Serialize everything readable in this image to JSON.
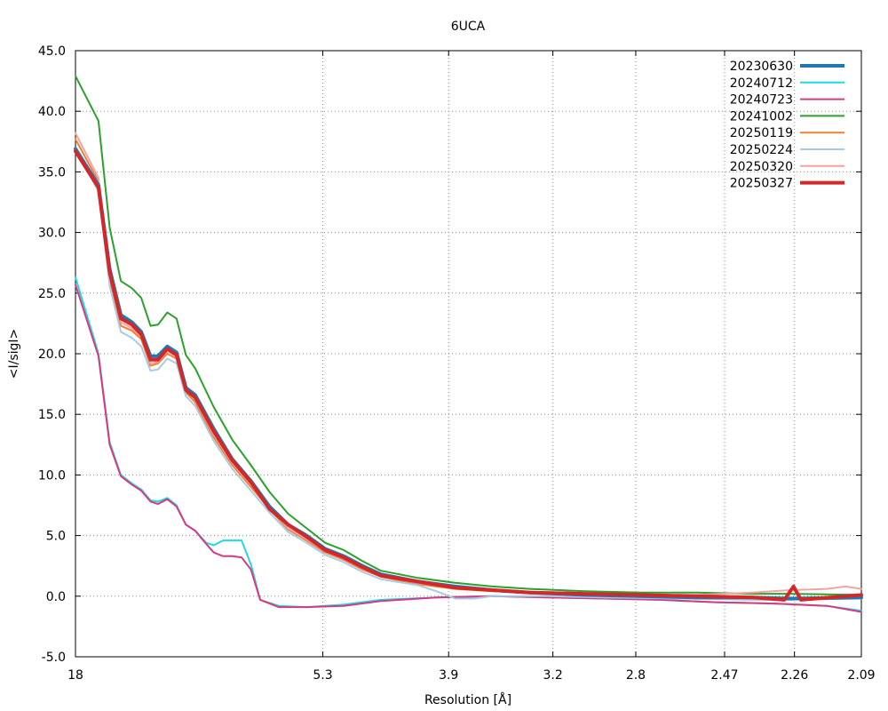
{
  "chart_data": {
    "type": "line",
    "title": "6UCA",
    "xlabel": "Resolution [Å]",
    "ylabel": "<I/sigI>",
    "x_tick_labels": [
      "18",
      "5.3",
      "3.9",
      "3.2",
      "2.8",
      "2.47",
      "2.26",
      "2.09"
    ],
    "x_tick_values": [
      0.0556,
      0.1887,
      0.2564,
      0.3125,
      0.3571,
      0.4049,
      0.4425,
      0.4785
    ],
    "x_range": [
      0.0556,
      0.4785
    ],
    "x_scale": "inverse resolution (1/Å), labels show resolution in Å",
    "y_ticks": [
      -5.0,
      0.0,
      5.0,
      10.0,
      15.0,
      20.0,
      25.0,
      30.0,
      35.0,
      40.0,
      45.0
    ],
    "ylim": [
      -5,
      45
    ],
    "grid": true,
    "legend_position": "top-right",
    "series": [
      {
        "name": "20230630",
        "color": "#1f77b4",
        "width": 4,
        "points": [
          [
            0.0556,
            36.9
          ],
          [
            0.068,
            33.9
          ],
          [
            0.074,
            27.0
          ],
          [
            0.08,
            23.2
          ],
          [
            0.086,
            22.6
          ],
          [
            0.091,
            21.8
          ],
          [
            0.096,
            19.8
          ],
          [
            0.1,
            19.8
          ],
          [
            0.105,
            20.6
          ],
          [
            0.11,
            20.1
          ],
          [
            0.115,
            17.2
          ],
          [
            0.12,
            16.6
          ],
          [
            0.13,
            13.8
          ],
          [
            0.14,
            11.3
          ],
          [
            0.15,
            9.5
          ],
          [
            0.16,
            7.4
          ],
          [
            0.17,
            5.9
          ],
          [
            0.18,
            5.0
          ],
          [
            0.19,
            3.9
          ],
          [
            0.2,
            3.3
          ],
          [
            0.21,
            2.5
          ],
          [
            0.22,
            1.8
          ],
          [
            0.24,
            1.2
          ],
          [
            0.26,
            0.8
          ],
          [
            0.28,
            0.5
          ],
          [
            0.3,
            0.3
          ],
          [
            0.33,
            0.1
          ],
          [
            0.36,
            0.0
          ],
          [
            0.39,
            -0.1
          ],
          [
            0.42,
            -0.1
          ],
          [
            0.44,
            -0.2
          ],
          [
            0.4785,
            -0.1
          ]
        ]
      },
      {
        "name": "20240712",
        "color": "#1ed9e6",
        "width": 2,
        "points": [
          [
            0.0556,
            26.3
          ],
          [
            0.068,
            20.0
          ],
          [
            0.074,
            12.7
          ],
          [
            0.08,
            10.0
          ],
          [
            0.086,
            9.3
          ],
          [
            0.091,
            8.8
          ],
          [
            0.096,
            7.9
          ],
          [
            0.1,
            7.8
          ],
          [
            0.105,
            8.1
          ],
          [
            0.11,
            7.5
          ],
          [
            0.115,
            5.9
          ],
          [
            0.12,
            5.4
          ],
          [
            0.126,
            4.4
          ],
          [
            0.13,
            4.2
          ],
          [
            0.135,
            4.6
          ],
          [
            0.14,
            4.6
          ],
          [
            0.145,
            4.6
          ],
          [
            0.15,
            2.6
          ],
          [
            0.155,
            -0.3
          ],
          [
            0.165,
            -0.8
          ],
          [
            0.18,
            -0.9
          ],
          [
            0.2,
            -0.7
          ],
          [
            0.22,
            -0.3
          ],
          [
            0.25,
            -0.1
          ],
          [
            0.28,
            0.0
          ],
          [
            0.31,
            -0.1
          ],
          [
            0.34,
            -0.2
          ],
          [
            0.37,
            -0.3
          ],
          [
            0.4,
            -0.5
          ],
          [
            0.43,
            -0.6
          ],
          [
            0.46,
            -0.8
          ],
          [
            0.4785,
            -1.2
          ]
        ]
      },
      {
        "name": "20240723",
        "color": "#d63a83",
        "width": 2,
        "points": [
          [
            0.0556,
            25.7
          ],
          [
            0.068,
            19.8
          ],
          [
            0.074,
            12.5
          ],
          [
            0.08,
            9.9
          ],
          [
            0.086,
            9.2
          ],
          [
            0.091,
            8.7
          ],
          [
            0.096,
            7.8
          ],
          [
            0.1,
            7.6
          ],
          [
            0.105,
            8.0
          ],
          [
            0.11,
            7.4
          ],
          [
            0.115,
            5.9
          ],
          [
            0.12,
            5.4
          ],
          [
            0.126,
            4.3
          ],
          [
            0.13,
            3.6
          ],
          [
            0.135,
            3.3
          ],
          [
            0.14,
            3.3
          ],
          [
            0.145,
            3.2
          ],
          [
            0.15,
            2.2
          ],
          [
            0.155,
            -0.3
          ],
          [
            0.165,
            -0.9
          ],
          [
            0.18,
            -0.9
          ],
          [
            0.2,
            -0.8
          ],
          [
            0.22,
            -0.4
          ],
          [
            0.25,
            -0.1
          ],
          [
            0.28,
            0.0
          ],
          [
            0.31,
            -0.1
          ],
          [
            0.34,
            -0.2
          ],
          [
            0.37,
            -0.3
          ],
          [
            0.4,
            -0.5
          ],
          [
            0.43,
            -0.6
          ],
          [
            0.46,
            -0.8
          ],
          [
            0.4785,
            -1.3
          ]
        ]
      },
      {
        "name": "20241002",
        "color": "#2ca02c",
        "width": 2,
        "points": [
          [
            0.0556,
            42.9
          ],
          [
            0.068,
            39.2
          ],
          [
            0.074,
            30.4
          ],
          [
            0.08,
            26.0
          ],
          [
            0.086,
            25.4
          ],
          [
            0.091,
            24.6
          ],
          [
            0.096,
            22.3
          ],
          [
            0.1,
            22.4
          ],
          [
            0.105,
            23.4
          ],
          [
            0.11,
            22.9
          ],
          [
            0.115,
            19.9
          ],
          [
            0.12,
            18.8
          ],
          [
            0.13,
            15.6
          ],
          [
            0.14,
            12.9
          ],
          [
            0.15,
            10.8
          ],
          [
            0.16,
            8.6
          ],
          [
            0.17,
            6.8
          ],
          [
            0.18,
            5.6
          ],
          [
            0.19,
            4.4
          ],
          [
            0.2,
            3.8
          ],
          [
            0.21,
            2.9
          ],
          [
            0.22,
            2.1
          ],
          [
            0.24,
            1.5
          ],
          [
            0.26,
            1.1
          ],
          [
            0.28,
            0.8
          ],
          [
            0.3,
            0.6
          ],
          [
            0.33,
            0.4
          ],
          [
            0.36,
            0.3
          ],
          [
            0.39,
            0.3
          ],
          [
            0.42,
            0.2
          ],
          [
            0.44,
            0.2
          ],
          [
            0.4785,
            0.1
          ]
        ]
      },
      {
        "name": "20250119",
        "color": "#f08030",
        "width": 2,
        "points": [
          [
            0.0556,
            37.7
          ],
          [
            0.068,
            34.2
          ],
          [
            0.074,
            26.2
          ],
          [
            0.08,
            22.3
          ],
          [
            0.086,
            21.9
          ],
          [
            0.091,
            21.2
          ],
          [
            0.096,
            19.0
          ],
          [
            0.1,
            19.2
          ],
          [
            0.105,
            20.0
          ],
          [
            0.11,
            19.6
          ],
          [
            0.115,
            16.8
          ],
          [
            0.12,
            16.0
          ],
          [
            0.13,
            13.1
          ],
          [
            0.14,
            10.8
          ],
          [
            0.15,
            9.0
          ],
          [
            0.16,
            7.2
          ],
          [
            0.17,
            5.5
          ],
          [
            0.18,
            4.6
          ],
          [
            0.19,
            3.6
          ],
          [
            0.2,
            3.0
          ],
          [
            0.21,
            2.2
          ],
          [
            0.22,
            1.6
          ],
          [
            0.24,
            1.0
          ],
          [
            0.26,
            0.6
          ],
          [
            0.28,
            0.4
          ],
          [
            0.3,
            0.3
          ],
          [
            0.33,
            0.1
          ],
          [
            0.36,
            0.0
          ],
          [
            0.39,
            -0.1
          ],
          [
            0.42,
            -0.2
          ],
          [
            0.44,
            -0.2
          ],
          [
            0.4785,
            -0.1
          ]
        ]
      },
      {
        "name": "20250224",
        "color": "#a6cbe3",
        "width": 2,
        "points": [
          [
            0.0556,
            36.8
          ],
          [
            0.068,
            33.4
          ],
          [
            0.074,
            25.6
          ],
          [
            0.08,
            21.8
          ],
          [
            0.086,
            21.3
          ],
          [
            0.091,
            20.6
          ],
          [
            0.096,
            18.6
          ],
          [
            0.1,
            18.7
          ],
          [
            0.105,
            19.6
          ],
          [
            0.11,
            19.2
          ],
          [
            0.115,
            16.5
          ],
          [
            0.12,
            15.7
          ],
          [
            0.13,
            12.8
          ],
          [
            0.14,
            10.5
          ],
          [
            0.15,
            8.7
          ],
          [
            0.16,
            6.9
          ],
          [
            0.17,
            5.3
          ],
          [
            0.18,
            4.4
          ],
          [
            0.19,
            3.4
          ],
          [
            0.2,
            2.8
          ],
          [
            0.21,
            2.0
          ],
          [
            0.22,
            1.4
          ],
          [
            0.24,
            0.9
          ],
          [
            0.25,
            0.4
          ],
          [
            0.26,
            -0.2
          ],
          [
            0.27,
            -0.2
          ],
          [
            0.28,
            0.0
          ],
          [
            0.31,
            0.0
          ],
          [
            0.34,
            -0.1
          ],
          [
            0.38,
            -0.2
          ],
          [
            0.42,
            -0.3
          ],
          [
            0.44,
            -0.3
          ],
          [
            0.4785,
            -0.2
          ]
        ]
      },
      {
        "name": "20250320",
        "color": "#f4a3a3",
        "width": 2,
        "points": [
          [
            0.0556,
            38.2
          ],
          [
            0.068,
            34.5
          ],
          [
            0.074,
            26.5
          ],
          [
            0.08,
            22.6
          ],
          [
            0.086,
            22.1
          ],
          [
            0.091,
            21.4
          ],
          [
            0.096,
            19.2
          ],
          [
            0.1,
            19.3
          ],
          [
            0.105,
            20.2
          ],
          [
            0.11,
            19.8
          ],
          [
            0.115,
            17.0
          ],
          [
            0.12,
            16.2
          ],
          [
            0.13,
            13.3
          ],
          [
            0.14,
            11.0
          ],
          [
            0.15,
            9.2
          ],
          [
            0.16,
            7.3
          ],
          [
            0.17,
            5.6
          ],
          [
            0.18,
            4.7
          ],
          [
            0.19,
            3.7
          ],
          [
            0.2,
            3.1
          ],
          [
            0.21,
            2.3
          ],
          [
            0.22,
            1.7
          ],
          [
            0.24,
            1.1
          ],
          [
            0.26,
            0.7
          ],
          [
            0.28,
            0.5
          ],
          [
            0.3,
            0.3
          ],
          [
            0.33,
            0.2
          ],
          [
            0.36,
            0.1
          ],
          [
            0.39,
            0.1
          ],
          [
            0.42,
            0.3
          ],
          [
            0.44,
            0.5
          ],
          [
            0.46,
            0.6
          ],
          [
            0.47,
            0.8
          ],
          [
            0.4785,
            0.6
          ]
        ]
      },
      {
        "name": "20250327",
        "color": "#d62728",
        "width": 4,
        "points": [
          [
            0.0556,
            36.7
          ],
          [
            0.068,
            33.7
          ],
          [
            0.074,
            26.7
          ],
          [
            0.08,
            22.9
          ],
          [
            0.086,
            22.4
          ],
          [
            0.091,
            21.6
          ],
          [
            0.096,
            19.5
          ],
          [
            0.1,
            19.5
          ],
          [
            0.105,
            20.4
          ],
          [
            0.11,
            19.9
          ],
          [
            0.115,
            17.0
          ],
          [
            0.12,
            16.4
          ],
          [
            0.13,
            13.6
          ],
          [
            0.14,
            11.2
          ],
          [
            0.15,
            9.4
          ],
          [
            0.16,
            7.2
          ],
          [
            0.17,
            5.9
          ],
          [
            0.18,
            4.9
          ],
          [
            0.19,
            3.8
          ],
          [
            0.2,
            3.2
          ],
          [
            0.21,
            2.4
          ],
          [
            0.22,
            1.7
          ],
          [
            0.24,
            1.2
          ],
          [
            0.26,
            0.7
          ],
          [
            0.28,
            0.5
          ],
          [
            0.3,
            0.3
          ],
          [
            0.33,
            0.2
          ],
          [
            0.36,
            0.1
          ],
          [
            0.39,
            0.0
          ],
          [
            0.42,
            -0.1
          ],
          [
            0.437,
            -0.3
          ],
          [
            0.442,
            0.8
          ],
          [
            0.446,
            -0.3
          ],
          [
            0.4785,
            0.1
          ]
        ]
      }
    ]
  }
}
